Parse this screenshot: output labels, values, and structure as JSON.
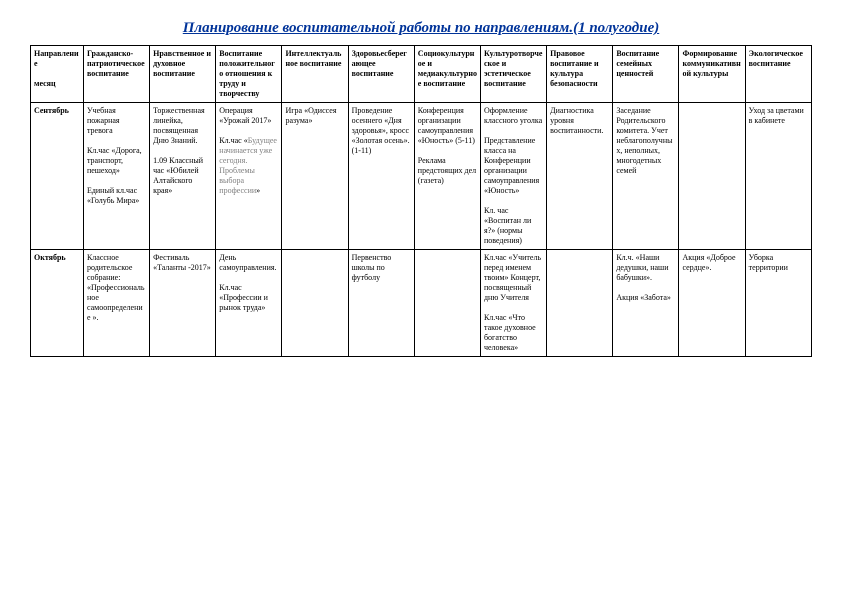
{
  "title": "Планирование воспитательной работы по направлениям.(1 полугодие)",
  "headers": {
    "c0": "Направление\n\nмесяц",
    "c1": "Гражданско-патриотическое воспитание",
    "c2": "Нравственное и духовное воспитание",
    "c3": "Воспитание положительного отношения к труду и творчеству",
    "c4": "Интеллектуальное воспитание",
    "c5": "Здоровьесберегающее воспитание",
    "c6": "Социокультурное и медиакультурное воспитание",
    "c7": "Культуротворческое и эстетическое воспитание",
    "c8": "Правовое воспитание и культура безопасности",
    "c9": "Воспитание семейных ценностей",
    "c10": "Формирование коммуникативной культуры",
    "c11": "Экологическое воспитание"
  },
  "rows": [
    {
      "month": "Сентябрь",
      "c1": "Учебная пожарная тревога\n\nКл.час «Дорога, транспорт, пешеход»\n\nЕдиный кл.час «Голубь Мира»",
      "c2": "Торжественная линейка, посвященная Дню Знаний.\n\n1.09 Классный час «Юбилей Алтайского края»",
      "c3_a": "Операция «Урожай 2017»\n\nКл.час «",
      "c3_b": "Будущее начинается уже сегодня. Проблемы выбора профессии",
      "c3_c": "»",
      "c4": "Игра «Одиссея разума»",
      "c5": "Проведение осеннего «Дня здоровья», кросс «Золотая осень». (1-11)",
      "c6": "Конференция организации самоуправления «Юность» (5-11)\n\nРеклама предстоящих дел (газета)",
      "c7": "Оформление классного уголка\n\nПредставление класса на Конференции организации самоуправления «Юность»\n\nКл. час «Воспитан ли я?» (нормы поведения)",
      "c8": "Диагностика уровня воспитанности.",
      "c9": "Заседание Родительского комитета. Учет неблагополучных, неполных, многодетных семей",
      "c10": "",
      "c11": "Уход за цветами в кабинете"
    },
    {
      "month": "Октябрь",
      "c1": "Классное родительское собрание: «Профессиональное самоопределение ».",
      "c2": "Фестиваль «Таланты -2017»",
      "c3": "День самоуправления.\n\nКл.час «Профессии и рынок труда»",
      "c4": "",
      "c5": "Первенство школы по футболу",
      "c6": "",
      "c7": "Кл.час «Учитель перед именем твоим» Концерт, посвященный дню Учителя\n\nКл.час «Что такое духовное богатство человека»",
      "c8": "",
      "c9": "Кл.ч. «Наши дедушки, наши бабушки».\n\nАкция «Забота»",
      "c10": "Акция «Доброе сердце».",
      "c11": "Уборка территории"
    }
  ]
}
